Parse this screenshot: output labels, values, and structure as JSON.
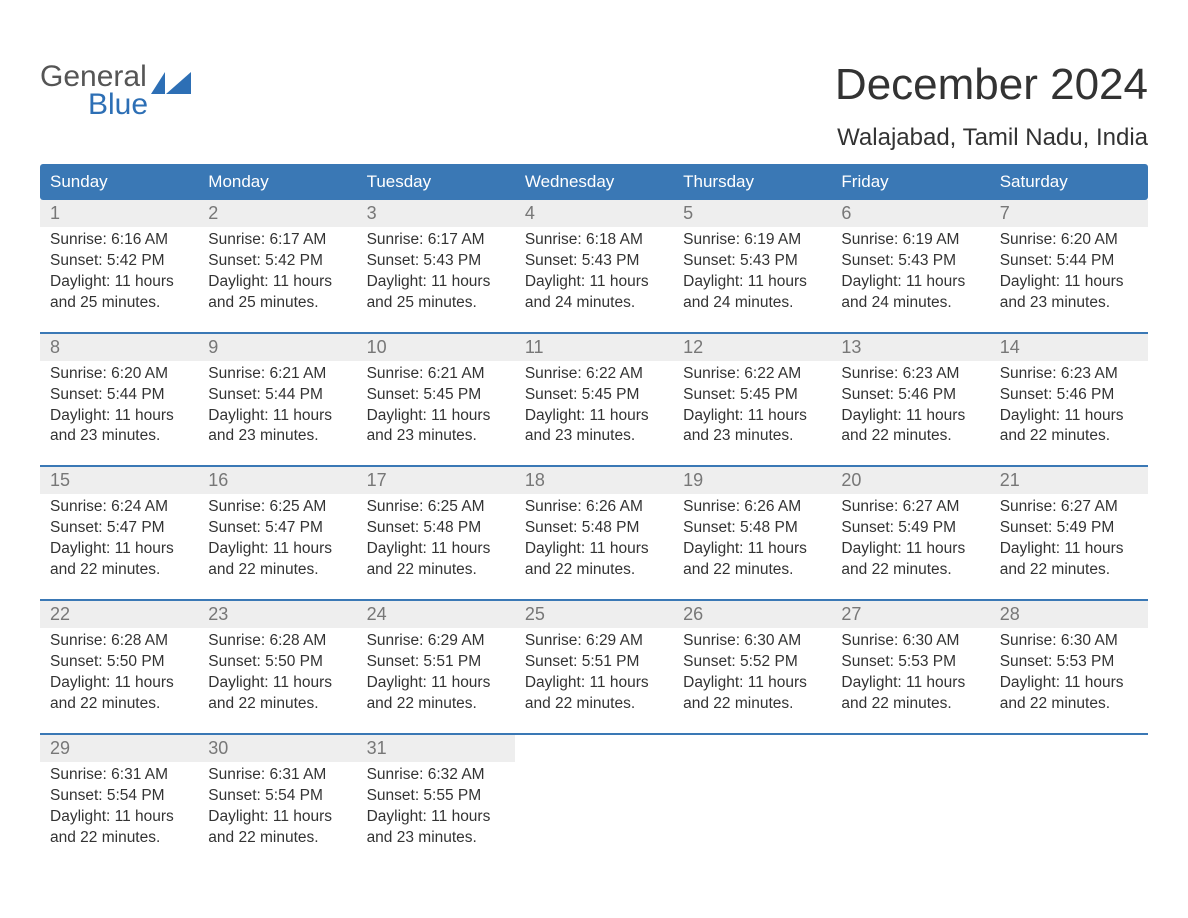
{
  "brand": {
    "word1": "General",
    "word2": "Blue"
  },
  "title": "December 2024",
  "location": "Walajabad, Tamil Nadu, India",
  "colors": {
    "header_bg": "#3a78b5",
    "header_text": "#ffffff",
    "day_num_bg": "#eeeeee",
    "day_num_text": "#777777",
    "body_text": "#333333",
    "brand_gray": "#555555",
    "brand_blue": "#2d6fb5",
    "week_border": "#3a78b5"
  },
  "weekdays": [
    "Sunday",
    "Monday",
    "Tuesday",
    "Wednesday",
    "Thursday",
    "Friday",
    "Saturday"
  ],
  "weeks": [
    [
      {
        "n": "1",
        "sunrise": "6:16 AM",
        "sunset": "5:42 PM",
        "daylight": "11 hours and 25 minutes."
      },
      {
        "n": "2",
        "sunrise": "6:17 AM",
        "sunset": "5:42 PM",
        "daylight": "11 hours and 25 minutes."
      },
      {
        "n": "3",
        "sunrise": "6:17 AM",
        "sunset": "5:43 PM",
        "daylight": "11 hours and 25 minutes."
      },
      {
        "n": "4",
        "sunrise": "6:18 AM",
        "sunset": "5:43 PM",
        "daylight": "11 hours and 24 minutes."
      },
      {
        "n": "5",
        "sunrise": "6:19 AM",
        "sunset": "5:43 PM",
        "daylight": "11 hours and 24 minutes."
      },
      {
        "n": "6",
        "sunrise": "6:19 AM",
        "sunset": "5:43 PM",
        "daylight": "11 hours and 24 minutes."
      },
      {
        "n": "7",
        "sunrise": "6:20 AM",
        "sunset": "5:44 PM",
        "daylight": "11 hours and 23 minutes."
      }
    ],
    [
      {
        "n": "8",
        "sunrise": "6:20 AM",
        "sunset": "5:44 PM",
        "daylight": "11 hours and 23 minutes."
      },
      {
        "n": "9",
        "sunrise": "6:21 AM",
        "sunset": "5:44 PM",
        "daylight": "11 hours and 23 minutes."
      },
      {
        "n": "10",
        "sunrise": "6:21 AM",
        "sunset": "5:45 PM",
        "daylight": "11 hours and 23 minutes."
      },
      {
        "n": "11",
        "sunrise": "6:22 AM",
        "sunset": "5:45 PM",
        "daylight": "11 hours and 23 minutes."
      },
      {
        "n": "12",
        "sunrise": "6:22 AM",
        "sunset": "5:45 PM",
        "daylight": "11 hours and 23 minutes."
      },
      {
        "n": "13",
        "sunrise": "6:23 AM",
        "sunset": "5:46 PM",
        "daylight": "11 hours and 22 minutes."
      },
      {
        "n": "14",
        "sunrise": "6:23 AM",
        "sunset": "5:46 PM",
        "daylight": "11 hours and 22 minutes."
      }
    ],
    [
      {
        "n": "15",
        "sunrise": "6:24 AM",
        "sunset": "5:47 PM",
        "daylight": "11 hours and 22 minutes."
      },
      {
        "n": "16",
        "sunrise": "6:25 AM",
        "sunset": "5:47 PM",
        "daylight": "11 hours and 22 minutes."
      },
      {
        "n": "17",
        "sunrise": "6:25 AM",
        "sunset": "5:48 PM",
        "daylight": "11 hours and 22 minutes."
      },
      {
        "n": "18",
        "sunrise": "6:26 AM",
        "sunset": "5:48 PM",
        "daylight": "11 hours and 22 minutes."
      },
      {
        "n": "19",
        "sunrise": "6:26 AM",
        "sunset": "5:48 PM",
        "daylight": "11 hours and 22 minutes."
      },
      {
        "n": "20",
        "sunrise": "6:27 AM",
        "sunset": "5:49 PM",
        "daylight": "11 hours and 22 minutes."
      },
      {
        "n": "21",
        "sunrise": "6:27 AM",
        "sunset": "5:49 PM",
        "daylight": "11 hours and 22 minutes."
      }
    ],
    [
      {
        "n": "22",
        "sunrise": "6:28 AM",
        "sunset": "5:50 PM",
        "daylight": "11 hours and 22 minutes."
      },
      {
        "n": "23",
        "sunrise": "6:28 AM",
        "sunset": "5:50 PM",
        "daylight": "11 hours and 22 minutes."
      },
      {
        "n": "24",
        "sunrise": "6:29 AM",
        "sunset": "5:51 PM",
        "daylight": "11 hours and 22 minutes."
      },
      {
        "n": "25",
        "sunrise": "6:29 AM",
        "sunset": "5:51 PM",
        "daylight": "11 hours and 22 minutes."
      },
      {
        "n": "26",
        "sunrise": "6:30 AM",
        "sunset": "5:52 PM",
        "daylight": "11 hours and 22 minutes."
      },
      {
        "n": "27",
        "sunrise": "6:30 AM",
        "sunset": "5:53 PM",
        "daylight": "11 hours and 22 minutes."
      },
      {
        "n": "28",
        "sunrise": "6:30 AM",
        "sunset": "5:53 PM",
        "daylight": "11 hours and 22 minutes."
      }
    ],
    [
      {
        "n": "29",
        "sunrise": "6:31 AM",
        "sunset": "5:54 PM",
        "daylight": "11 hours and 22 minutes."
      },
      {
        "n": "30",
        "sunrise": "6:31 AM",
        "sunset": "5:54 PM",
        "daylight": "11 hours and 22 minutes."
      },
      {
        "n": "31",
        "sunrise": "6:32 AM",
        "sunset": "5:55 PM",
        "daylight": "11 hours and 23 minutes."
      },
      null,
      null,
      null,
      null
    ]
  ],
  "labels": {
    "sunrise": "Sunrise:",
    "sunset": "Sunset:",
    "daylight": "Daylight:"
  }
}
